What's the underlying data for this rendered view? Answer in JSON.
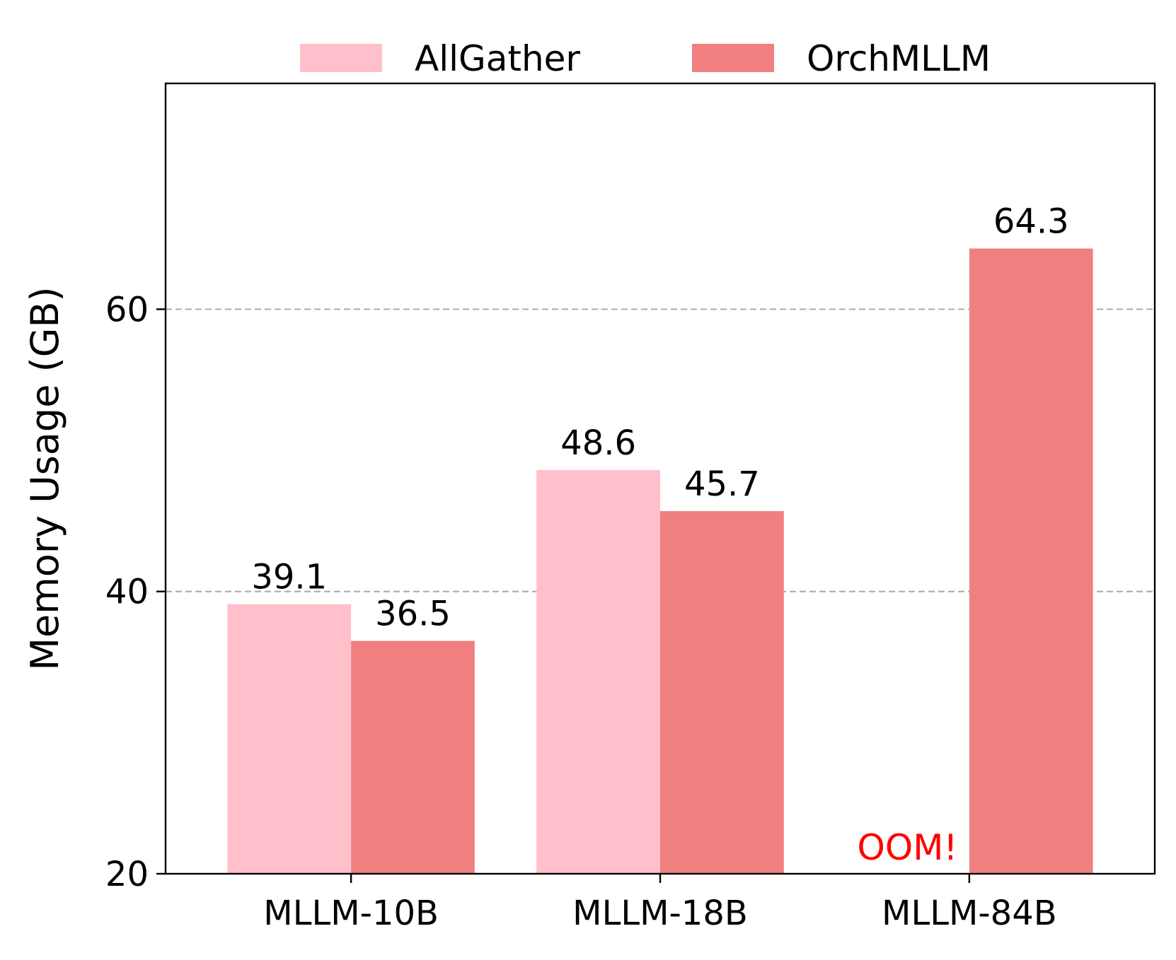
{
  "chart_data": {
    "type": "bar",
    "categories": [
      "MLLM-10B",
      "MLLM-18B",
      "MLLM-84B"
    ],
    "series": [
      {
        "name": "AllGather",
        "values": [
          39.1,
          48.6,
          null
        ],
        "color": "#FFBFCB"
      },
      {
        "name": "OrchMLLM",
        "values": [
          36.5,
          45.7,
          64.3
        ],
        "color": "#F08080"
      }
    ],
    "value_labels": [
      [
        "39.1",
        "48.6",
        null
      ],
      [
        "36.5",
        "45.7",
        "64.3"
      ]
    ],
    "annotations": [
      {
        "text": "OOM!",
        "category": "MLLM-84B",
        "series": "AllGather",
        "color": "#FF0000"
      }
    ],
    "xlabel": "",
    "ylabel": "Memory Usage (GB)",
    "ylim": [
      20,
      76
    ],
    "yticks": [
      20,
      40,
      60
    ],
    "grid": {
      "y": true,
      "lines_at": [
        40,
        60
      ],
      "style": "dashed",
      "color": "#B0B0B0"
    },
    "legend": {
      "position": "top-center",
      "columns": 2
    }
  }
}
